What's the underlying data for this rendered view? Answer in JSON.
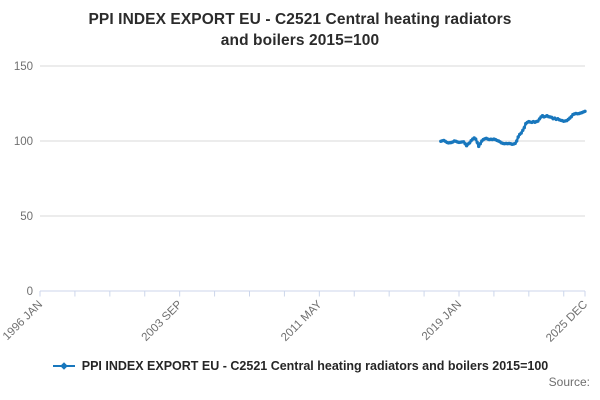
{
  "title": {
    "lines": [
      "PPI INDEX EXPORT EU - C2521 Central heating radiators",
      "and boilers 2015=100"
    ]
  },
  "legend": {
    "label": "PPI INDEX EXPORT EU - C2521 Central heating radiators and boilers 2015=100",
    "marker": "blue-line-with-point-marker"
  },
  "source": {
    "label": "Source:"
  },
  "chart_data": {
    "type": "line",
    "title": "PPI INDEX EXPORT EU - C2521 Central heating radiators and boilers 2015=100",
    "x_axis": {
      "start_month": "1996-01",
      "end_month": "2025-12",
      "tick_interval_months": 23,
      "tick_labels": [
        {
          "label": "1996 JAN",
          "month": "1996-01"
        },
        {
          "label": "2003 SEP",
          "month": "2003-09"
        },
        {
          "label": "2011 MAY",
          "month": "2011-05"
        },
        {
          "label": "2019 JAN",
          "month": "2019-01"
        },
        {
          "label": "2025 DEC",
          "month": "2025-12"
        }
      ]
    },
    "y_axis": {
      "min": 0,
      "max": 150,
      "ticks": [
        0,
        50,
        100,
        150
      ],
      "grid": true
    },
    "series": [
      {
        "name": "PPI INDEX EXPORT EU - C2521 Central heating radiators and boilers 2015=100",
        "color": "#1877bd",
        "start_month": "2018-01",
        "frequency": "monthly",
        "values": [
          99.8,
          100.1,
          100.4,
          99.8,
          99.1,
          98.7,
          98.9,
          99.0,
          99.4,
          100.0,
          99.8,
          99.3,
          99.1,
          99.2,
          99.4,
          99.5,
          98.2,
          96.9,
          98.0,
          98.7,
          100.2,
          101.3,
          102.0,
          101.3,
          99.1,
          96.4,
          98.2,
          100.0,
          100.9,
          101.5,
          101.8,
          101.3,
          100.9,
          101.2,
          100.9,
          101.3,
          100.9,
          100.4,
          100.0,
          99.5,
          98.7,
          98.4,
          98.2,
          98.4,
          98.2,
          98.4,
          98.2,
          97.8,
          98.0,
          98.4,
          100.0,
          102.7,
          104.4,
          105.3,
          107.1,
          108.9,
          111.6,
          112.4,
          112.9,
          112.6,
          112.4,
          112.9,
          112.5,
          112.9,
          113.3,
          114.7,
          116.0,
          116.9,
          116.1,
          116.4,
          116.9,
          116.2,
          116.0,
          115.8,
          114.9,
          115.3,
          114.4,
          114.9,
          114.2,
          113.8,
          113.6,
          113.1,
          113.4,
          113.6,
          114.4,
          115.3,
          116.2,
          117.6,
          118.0,
          118.4,
          118.1,
          118.3,
          118.6,
          118.9,
          119.4,
          119.8
        ]
      }
    ],
    "colors": {
      "line": "#1877bd",
      "grid": "#d9d9d9",
      "axis": "#ccd6eb",
      "tick_label": "#6f6f6f",
      "title_text": "#2b2b2b",
      "legend_text": "#262626",
      "source_text": "#6e6e6e",
      "background": "#ffffff"
    }
  }
}
